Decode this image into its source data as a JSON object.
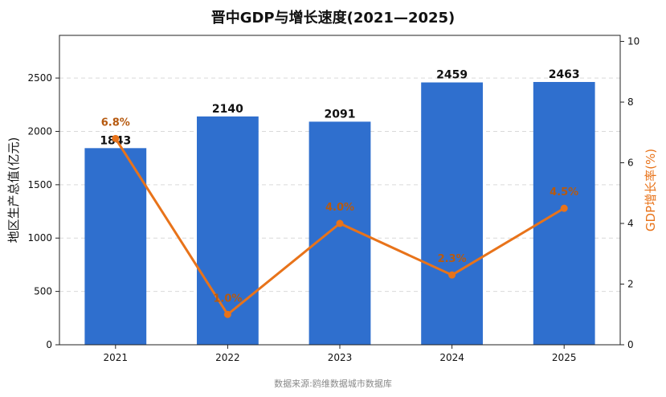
{
  "chart_data": {
    "type": "bar",
    "title": "晋中GDP与增长速度(2021—2025)",
    "categories": [
      "2021",
      "2022",
      "2023",
      "2024",
      "2025"
    ],
    "series": [
      {
        "name": "地区生产总值(亿元)",
        "type": "bar",
        "axis": "left",
        "values": [
          1843,
          2140,
          2091,
          2459,
          2463
        ],
        "labels": [
          "1843",
          "2140",
          "2091",
          "2459",
          "2463"
        ]
      },
      {
        "name": "GDP增长率(%)",
        "type": "line",
        "axis": "right",
        "values": [
          6.8,
          1.0,
          4.0,
          2.3,
          4.5
        ],
        "labels": [
          "6.8%",
          "1.0%",
          "4.0%",
          "2.3%",
          "4.5%"
        ]
      }
    ],
    "ylabel": "地区生产总值(亿元)",
    "y2label": "GDP增长率(%)",
    "ylim": [
      0,
      2900
    ],
    "y2lim": [
      0,
      10.2
    ],
    "yticks": [
      0,
      500,
      1000,
      1500,
      2000,
      2500
    ],
    "y2ticks": [
      0,
      2,
      4,
      6,
      8,
      10
    ],
    "grid": "horizontal-dashed",
    "colors": {
      "bar": "#2f6fce",
      "line": "#e8731a",
      "line_label": "#b65a10"
    }
  },
  "source_note": "数据来源:鸥维数据城市数据库"
}
